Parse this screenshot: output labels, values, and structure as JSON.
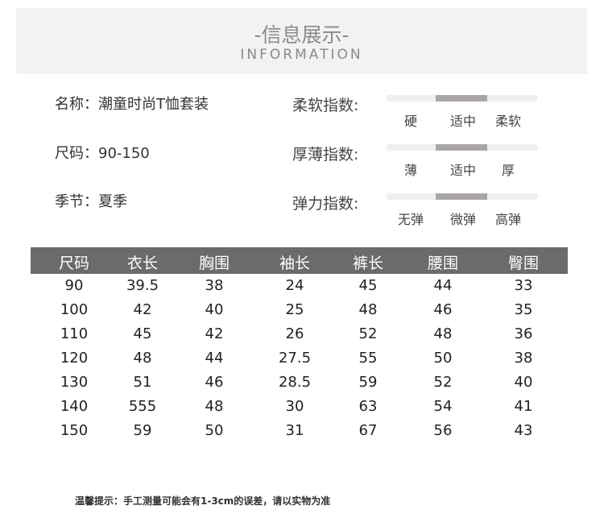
{
  "header": {
    "title": "-信息展示-",
    "subtitle": "INFORMATION"
  },
  "info": [
    {
      "label": "名称：",
      "value": "潮童时尚T恤套装"
    },
    {
      "label": "尺码：",
      "value": "90-150"
    },
    {
      "label": "季节：",
      "value": "夏季"
    }
  ],
  "indices": [
    {
      "label": "柔软指数:",
      "options": [
        "硬",
        "适中",
        "柔软"
      ],
      "selected": "适中"
    },
    {
      "label": "厚薄指数:",
      "options": [
        "薄",
        "适中",
        "厚"
      ],
      "selected": "适中"
    },
    {
      "label": "弹力指数:",
      "options": [
        "无弹",
        "微弹",
        "高弹"
      ],
      "selected": "微弹"
    }
  ],
  "colors": {
    "header_bg": "#6b6b6b",
    "banner_bg": "#f2f2f2",
    "indicator": "#aaa6a6"
  },
  "table": {
    "headers": [
      "尺码",
      "衣长",
      "胸围",
      "袖长",
      "裤长",
      "腰围",
      "臀围"
    ],
    "rows": [
      [
        "90",
        "39.5",
        "38",
        "24",
        "45",
        "44",
        "33"
      ],
      [
        "100",
        "42",
        "40",
        "25",
        "48",
        "46",
        "35"
      ],
      [
        "110",
        "45",
        "42",
        "26",
        "52",
        "48",
        "36"
      ],
      [
        "120",
        "48",
        "44",
        "27.5",
        "55",
        "50",
        "38"
      ],
      [
        "130",
        "51",
        "46",
        "28.5",
        "59",
        "52",
        "40"
      ],
      [
        "140",
        "555",
        "48",
        "30",
        "63",
        "54",
        "41"
      ],
      [
        "150",
        "59",
        "50",
        "31",
        "67",
        "56",
        "43"
      ]
    ]
  },
  "footer": "温馨提示：手工测量可能会有1-3cm的误差，请以实物为准"
}
